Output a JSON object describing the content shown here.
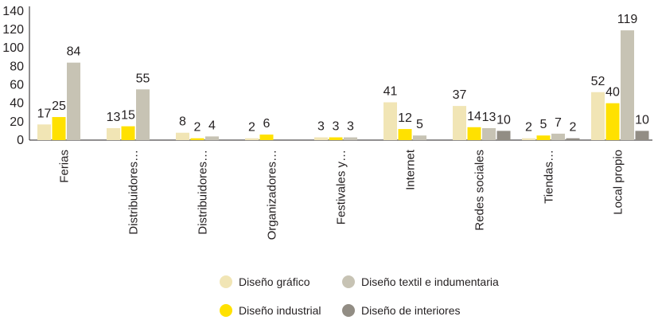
{
  "chart_data": {
    "type": "bar",
    "categories": [
      "Ferias",
      "Distribuidores…",
      "Distribuidores…",
      "Organizadores…",
      "Festivales y…",
      "Internet",
      "Redes sociales",
      "Tiendas…",
      "Local propio"
    ],
    "series": [
      {
        "name": "Diseño gráfico",
        "color": "#f1e5b5",
        "values": [
          17,
          13,
          8,
          2,
          3,
          41,
          37,
          2,
          52
        ]
      },
      {
        "name": "Diseño industrial",
        "color": "#ffe100",
        "values": [
          25,
          15,
          2,
          6,
          3,
          12,
          14,
          5,
          40
        ]
      },
      {
        "name": "Diseño textil e indumentaria",
        "color": "#c7c3b4",
        "values": [
          84,
          55,
          4,
          null,
          3,
          5,
          13,
          7,
          119
        ]
      },
      {
        "name": "Diseño de interiores",
        "color": "#928d84",
        "values": [
          null,
          null,
          null,
          null,
          null,
          null,
          10,
          2,
          10
        ]
      }
    ],
    "data_labels": [
      [
        "17",
        "25",
        "84",
        null
      ],
      [
        "13",
        "15",
        "55",
        null
      ],
      [
        "8",
        "2",
        "4",
        null
      ],
      [
        "2",
        "6",
        null,
        null
      ],
      [
        "3",
        "3",
        "3",
        null
      ],
      [
        "41",
        "12",
        "5",
        null
      ],
      [
        "37",
        "14",
        "13",
        "10"
      ],
      [
        "2",
        "5",
        "7",
        "2"
      ],
      [
        "52",
        "40",
        "119",
        "10"
      ]
    ],
    "yticks": [
      0,
      20,
      40,
      60,
      80,
      100,
      120,
      140
    ],
    "ylim": [
      0,
      145
    ],
    "grid": false,
    "legend_position": "bottom"
  }
}
